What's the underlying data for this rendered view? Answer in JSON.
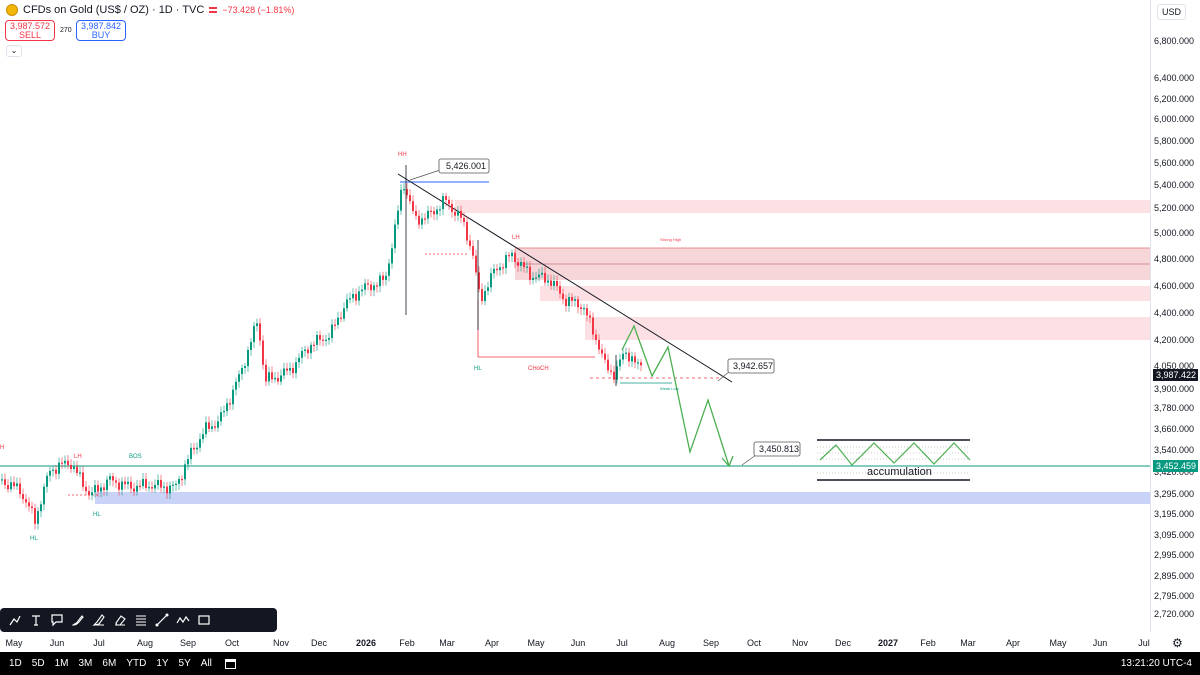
{
  "header": {
    "symbol": "CFDs on Gold (US$ / OZ) · 1D · TVC",
    "change": "−73.428 (−1.81%)",
    "sell_price": "3,987.572",
    "sell_label": "SELL",
    "spread": "270",
    "buy_price": "3,987.842",
    "buy_label": "BUY",
    "currency": "USD"
  },
  "price_scale": {
    "ticks": [
      "6,800.000",
      "6,400.000",
      "6,200.000",
      "6,000.000",
      "5,800.000",
      "5,600.000",
      "5,400.000",
      "5,200.000",
      "5,000.000",
      "4,800.000",
      "4,600.000",
      "4,400.000",
      "4,200.000",
      "4,050.000",
      "3,900.000",
      "3,780.000",
      "3,660.000",
      "3,540.000",
      "3,420.000",
      "3,295.000",
      "3,195.000",
      "3,095.000",
      "2,995.000",
      "2,895.000",
      "2,795.000",
      "2,720.000"
    ],
    "current_price": "3,987.422",
    "level_price": "3,452.459"
  },
  "time_axis": {
    "ticks": [
      "May",
      "Jun",
      "Jul",
      "Aug",
      "Sep",
      "Oct",
      "Nov",
      "Dec",
      "2026",
      "Feb",
      "Mar",
      "Apr",
      "May",
      "Jun",
      "Jul",
      "Aug",
      "Sep",
      "Oct",
      "Nov",
      "Dec",
      "2027",
      "Feb",
      "Mar",
      "Apr",
      "May",
      "Jun",
      "Jul"
    ]
  },
  "annotations": {
    "callout_high": "5,426.001",
    "callout_mid": "3,942.657",
    "callout_low": "3,450.813",
    "accumulation": "accumulation",
    "hh": "HH",
    "lh": "LH",
    "lh_left": "LH",
    "hl": "HL",
    "hl_mid": "HL",
    "hl_left": "HL",
    "choch": "CHoCH",
    "bos": "BOS",
    "strong_high": "Strong High",
    "weak_low": "Weak Low",
    "h_left": "H"
  },
  "bottom_bar": {
    "timeframes": [
      "1D",
      "5D",
      "1M",
      "3M",
      "6M",
      "YTD",
      "1Y",
      "5Y",
      "All"
    ],
    "clock": "13:21:20 UTC-4"
  },
  "colors": {
    "up": "#089981",
    "down": "#f23645",
    "level": "#089981",
    "projection": "#4caf50",
    "supply_zone": "#f8c9cf",
    "demand_zone": "#b7c3f3"
  },
  "chart_data": {
    "type": "candlestick",
    "projection_path": [
      [
        "2026-07-06",
        4050
      ],
      [
        "2026-07-13",
        4310
      ],
      [
        "2026-07-27",
        3990
      ],
      [
        "2026-08-10",
        4150
      ],
      [
        "2026-08-24",
        3680
      ],
      [
        "2026-09-07",
        3860
      ],
      [
        "2026-09-28",
        3410
      ]
    ],
    "trendline": [
      [
        "2026-01-22",
        5460
      ],
      [
        "2026-09-20",
        3920
      ]
    ],
    "horizontal_level": 3452.459
  }
}
